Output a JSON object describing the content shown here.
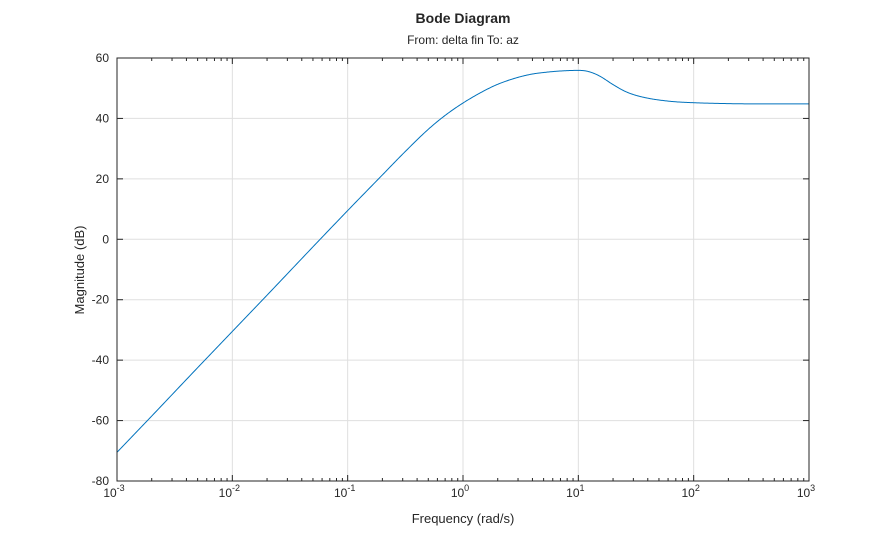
{
  "chart_data": {
    "type": "line",
    "title": "Bode Diagram",
    "subtitle": "From: delta fin  To: az",
    "xlabel": "Frequency (rad/s)",
    "ylabel": "Magnitude (dB)",
    "xscale": "log",
    "xlim": [
      0.001,
      1000
    ],
    "ylim": [
      -80,
      60
    ],
    "grid": true,
    "x_ticks": [
      {
        "value": 0.001,
        "base": "10",
        "exp": "-3"
      },
      {
        "value": 0.01,
        "base": "10",
        "exp": "-2"
      },
      {
        "value": 0.1,
        "base": "10",
        "exp": "-1"
      },
      {
        "value": 1,
        "base": "10",
        "exp": "0"
      },
      {
        "value": 10,
        "base": "10",
        "exp": "1"
      },
      {
        "value": 100,
        "base": "10",
        "exp": "2"
      },
      {
        "value": 1000,
        "base": "10",
        "exp": "3"
      }
    ],
    "y_ticks": [
      {
        "value": 60,
        "label": "60"
      },
      {
        "value": 40,
        "label": "40"
      },
      {
        "value": 20,
        "label": "20"
      },
      {
        "value": 0,
        "label": "0"
      },
      {
        "value": -20,
        "label": "-20"
      },
      {
        "value": -40,
        "label": "-40"
      },
      {
        "value": -60,
        "label": "-60"
      },
      {
        "value": -80,
        "label": "-80"
      }
    ],
    "series": [
      {
        "color": "#0072bd",
        "x": [
          0.001,
          0.002,
          0.005,
          0.01,
          0.02,
          0.05,
          0.1,
          0.2,
          0.3,
          0.5,
          0.7,
          1,
          1.5,
          2,
          3,
          4,
          5,
          7,
          10,
          12,
          15,
          20,
          25,
          30,
          40,
          50,
          70,
          100,
          200,
          500,
          1000
        ],
        "values": [
          -70.5,
          -58.5,
          -42.5,
          -30.5,
          -18.5,
          -2.5,
          9.5,
          21.3,
          28.2,
          36.4,
          41.0,
          45.1,
          49.0,
          51.3,
          53.6,
          54.7,
          55.2,
          55.7,
          55.9,
          55.6,
          54.2,
          51.2,
          49.1,
          47.9,
          46.7,
          46.1,
          45.5,
          45.2,
          44.9,
          44.8,
          44.8
        ]
      }
    ]
  }
}
